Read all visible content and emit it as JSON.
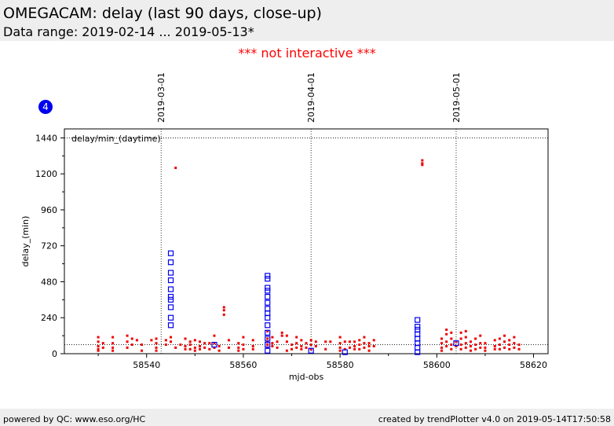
{
  "header": {
    "title": "OMEGACAM: delay (last 90 days, close-up)",
    "subtitle": "Data range: 2019-02-14 ... 2019-05-13*"
  },
  "notice": "*** not interactive ***",
  "badge": "4",
  "footer": {
    "left": "powered by QC: www.eso.org/HC",
    "right": "created by trendPlotter v4.0 on 2019-05-14T17:50:58"
  },
  "colors": {
    "daytime": "#ee0000",
    "squares": "#0000ee",
    "badge": "#0000ee"
  },
  "chart_data": {
    "type": "scatter",
    "panel_label": "delay/min_(daytime)",
    "xlabel": "mjd-obs",
    "ylabel": "delay_(min)",
    "xlim": [
      58523,
      58623
    ],
    "ylim": [
      0,
      1500
    ],
    "xticks": [
      58540,
      58560,
      58580,
      58600,
      58620
    ],
    "yticks": [
      0,
      240,
      480,
      720,
      960,
      1200,
      1440
    ],
    "reference_lines": [
      1440,
      60
    ],
    "date_markers": [
      {
        "label": "2019-03-01",
        "x": 58543
      },
      {
        "label": "2019-04-01",
        "x": 58574
      },
      {
        "label": "2019-05-01",
        "x": 58604
      }
    ],
    "series": [
      {
        "marker": "dot",
        "points": [
          [
            58530,
            110
          ],
          [
            58530,
            80
          ],
          [
            58530,
            50
          ],
          [
            58530,
            30
          ],
          [
            58530,
            20
          ],
          [
            58531,
            70
          ],
          [
            58531,
            40
          ],
          [
            58533,
            110
          ],
          [
            58533,
            70
          ],
          [
            58533,
            40
          ],
          [
            58533,
            20
          ],
          [
            58536,
            120
          ],
          [
            58536,
            80
          ],
          [
            58536,
            40
          ],
          [
            58537,
            100
          ],
          [
            58537,
            60
          ],
          [
            58538,
            90
          ],
          [
            58539,
            20
          ],
          [
            58539,
            60
          ],
          [
            58541,
            90
          ],
          [
            58542,
            100
          ],
          [
            58542,
            70
          ],
          [
            58542,
            40
          ],
          [
            58542,
            20
          ],
          [
            58544,
            90
          ],
          [
            58544,
            60
          ],
          [
            58545,
            110
          ],
          [
            58545,
            80
          ],
          [
            58546,
            40
          ],
          [
            58546,
            1240
          ],
          [
            58547,
            60
          ],
          [
            58548,
            100
          ],
          [
            58548,
            50
          ],
          [
            58548,
            30
          ],
          [
            58549,
            80
          ],
          [
            58549,
            60
          ],
          [
            58549,
            30
          ],
          [
            58550,
            90
          ],
          [
            58550,
            40
          ],
          [
            58550,
            20
          ],
          [
            58551,
            80
          ],
          [
            58551,
            50
          ],
          [
            58551,
            30
          ],
          [
            58552,
            70
          ],
          [
            58552,
            40
          ],
          [
            58553,
            70
          ],
          [
            58553,
            30
          ],
          [
            58554,
            120
          ],
          [
            58554,
            70
          ],
          [
            58554,
            40
          ],
          [
            58555,
            50
          ],
          [
            58555,
            20
          ],
          [
            58556,
            310
          ],
          [
            58556,
            290
          ],
          [
            58556,
            260
          ],
          [
            58557,
            90
          ],
          [
            58557,
            40
          ],
          [
            58559,
            70
          ],
          [
            58559,
            40
          ],
          [
            58559,
            20
          ],
          [
            58560,
            110
          ],
          [
            58560,
            60
          ],
          [
            58560,
            30
          ],
          [
            58562,
            90
          ],
          [
            58562,
            50
          ],
          [
            58562,
            30
          ],
          [
            58565,
            150
          ],
          [
            58565,
            100
          ],
          [
            58565,
            80
          ],
          [
            58565,
            60
          ],
          [
            58565,
            40
          ],
          [
            58566,
            110
          ],
          [
            58566,
            70
          ],
          [
            58566,
            50
          ],
          [
            58567,
            80
          ],
          [
            58567,
            40
          ],
          [
            58568,
            140
          ],
          [
            58568,
            120
          ],
          [
            58569,
            120
          ],
          [
            58569,
            80
          ],
          [
            58569,
            20
          ],
          [
            58570,
            60
          ],
          [
            58570,
            30
          ],
          [
            58571,
            110
          ],
          [
            58571,
            70
          ],
          [
            58571,
            40
          ],
          [
            58572,
            90
          ],
          [
            58572,
            50
          ],
          [
            58572,
            30
          ],
          [
            58573,
            70
          ],
          [
            58573,
            40
          ],
          [
            58574,
            90
          ],
          [
            58574,
            60
          ],
          [
            58574,
            30
          ],
          [
            58575,
            80
          ],
          [
            58575,
            50
          ],
          [
            58577,
            80
          ],
          [
            58577,
            30
          ],
          [
            58578,
            80
          ],
          [
            58580,
            110
          ],
          [
            58580,
            70
          ],
          [
            58580,
            40
          ],
          [
            58580,
            20
          ],
          [
            58581,
            80
          ],
          [
            58581,
            30
          ],
          [
            58582,
            80
          ],
          [
            58582,
            40
          ],
          [
            58583,
            80
          ],
          [
            58583,
            50
          ],
          [
            58583,
            30
          ],
          [
            58584,
            90
          ],
          [
            58584,
            60
          ],
          [
            58584,
            30
          ],
          [
            58585,
            110
          ],
          [
            58585,
            70
          ],
          [
            58585,
            40
          ],
          [
            58586,
            70
          ],
          [
            58586,
            50
          ],
          [
            58586,
            20
          ],
          [
            58587,
            90
          ],
          [
            58587,
            50
          ],
          [
            58597,
            1290
          ],
          [
            58597,
            1270
          ],
          [
            58597,
            1260
          ],
          [
            58601,
            100
          ],
          [
            58601,
            70
          ],
          [
            58601,
            40
          ],
          [
            58601,
            20
          ],
          [
            58602,
            160
          ],
          [
            58602,
            130
          ],
          [
            58602,
            80
          ],
          [
            58602,
            50
          ],
          [
            58603,
            140
          ],
          [
            58603,
            100
          ],
          [
            58603,
            60
          ],
          [
            58603,
            30
          ],
          [
            58604,
            80
          ],
          [
            58604,
            50
          ],
          [
            58605,
            140
          ],
          [
            58605,
            100
          ],
          [
            58605,
            60
          ],
          [
            58605,
            30
          ],
          [
            58606,
            150
          ],
          [
            58606,
            110
          ],
          [
            58606,
            70
          ],
          [
            58606,
            40
          ],
          [
            58607,
            80
          ],
          [
            58607,
            50
          ],
          [
            58607,
            20
          ],
          [
            58608,
            100
          ],
          [
            58608,
            60
          ],
          [
            58608,
            30
          ],
          [
            58609,
            120
          ],
          [
            58609,
            70
          ],
          [
            58609,
            40
          ],
          [
            58610,
            70
          ],
          [
            58610,
            40
          ],
          [
            58610,
            20
          ],
          [
            58612,
            90
          ],
          [
            58612,
            50
          ],
          [
            58612,
            30
          ],
          [
            58613,
            100
          ],
          [
            58613,
            60
          ],
          [
            58613,
            30
          ],
          [
            58614,
            120
          ],
          [
            58614,
            80
          ],
          [
            58614,
            40
          ],
          [
            58615,
            90
          ],
          [
            58615,
            60
          ],
          [
            58615,
            30
          ],
          [
            58616,
            110
          ],
          [
            58616,
            70
          ],
          [
            58616,
            40
          ],
          [
            58617,
            60
          ],
          [
            58617,
            30
          ]
        ]
      },
      {
        "marker": "square",
        "points": [
          [
            58545,
            190
          ],
          [
            58545,
            240
          ],
          [
            58545,
            310
          ],
          [
            58545,
            360
          ],
          [
            58545,
            380
          ],
          [
            58545,
            430
          ],
          [
            58545,
            490
          ],
          [
            58545,
            540
          ],
          [
            58545,
            610
          ],
          [
            58545,
            670
          ],
          [
            58565,
            20
          ],
          [
            58565,
            60
          ],
          [
            58565,
            100
          ],
          [
            58565,
            140
          ],
          [
            58565,
            190
          ],
          [
            58565,
            240
          ],
          [
            58565,
            270
          ],
          [
            58565,
            300
          ],
          [
            58565,
            340
          ],
          [
            58565,
            380
          ],
          [
            58565,
            420
          ],
          [
            58565,
            440
          ],
          [
            58565,
            500
          ],
          [
            58565,
            520
          ],
          [
            58554,
            60
          ],
          [
            58574,
            20
          ],
          [
            58581,
            10
          ],
          [
            58596,
            10
          ],
          [
            58596,
            40
          ],
          [
            58596,
            70
          ],
          [
            58596,
            100
          ],
          [
            58596,
            130
          ],
          [
            58596,
            160
          ],
          [
            58596,
            180
          ],
          [
            58596,
            225
          ],
          [
            58604,
            70
          ]
        ]
      }
    ]
  }
}
